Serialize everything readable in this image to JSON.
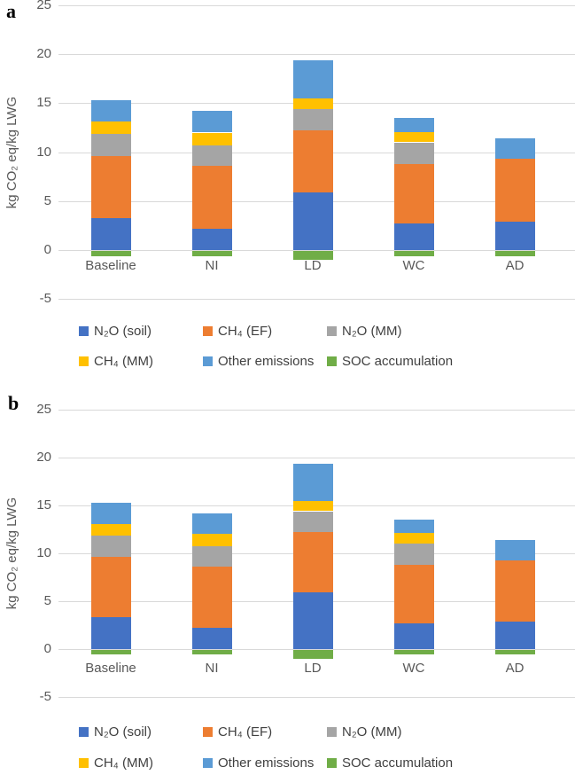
{
  "figure": {
    "background": "#ffffff",
    "gridline_color": "#d9d9d9",
    "axis_text_color": "#595959",
    "legend_text_color": "#404040"
  },
  "chart_data": [
    {
      "type": "bar",
      "stacked": true,
      "panel_label": "a",
      "title": "",
      "xlabel": "",
      "ylabel": "kg CO₂ eq/kg LWG",
      "categories": [
        "Baseline",
        "NI",
        "LD",
        "WC",
        "AD"
      ],
      "series": [
        {
          "name": "N₂O (soil)",
          "color": "#4472C4",
          "values": [
            3.3,
            2.2,
            5.9,
            2.7,
            2.9
          ]
        },
        {
          "name": "CH₄ (EF)",
          "color": "#ED7D31",
          "values": [
            6.3,
            6.4,
            6.3,
            6.1,
            6.4
          ]
        },
        {
          "name": "N₂O (MM)",
          "color": "#A5A5A5",
          "values": [
            2.3,
            2.1,
            2.2,
            2.2,
            0
          ]
        },
        {
          "name": "CH₄ (MM)",
          "color": "#FFC000",
          "values": [
            1.2,
            1.3,
            1.1,
            1.1,
            0
          ]
        },
        {
          "name": "Other emissions",
          "color": "#5B9BD5",
          "values": [
            2.2,
            2.2,
            3.9,
            1.4,
            2.1
          ]
        },
        {
          "name": "SOC accumulation",
          "color": "#70AD47",
          "values": [
            -0.5,
            -0.5,
            -0.9,
            -0.5,
            -0.5
          ]
        }
      ],
      "stack_totals_positive": [
        15.3,
        14.2,
        19.4,
        13.5,
        11.4
      ],
      "yticks": [
        25,
        20,
        15,
        10,
        5,
        0,
        -5
      ],
      "ylim": [
        -5,
        25
      ],
      "grid": true,
      "legend_position": "bottom"
    },
    {
      "type": "bar",
      "stacked": true,
      "panel_label": "b",
      "title": "",
      "xlabel": "",
      "ylabel": "kg CO₂ eq/kg LWG",
      "categories": [
        "Baseline",
        "NI",
        "LD",
        "WC",
        "AD"
      ],
      "series": [
        {
          "name": "N₂O (soil)",
          "color": "#4472C4",
          "values": [
            3.3,
            2.2,
            5.9,
            2.7,
            2.9
          ]
        },
        {
          "name": "CH₄ (EF)",
          "color": "#ED7D31",
          "values": [
            6.3,
            6.4,
            6.3,
            6.1,
            6.4
          ]
        },
        {
          "name": "N₂O (MM)",
          "color": "#A5A5A5",
          "values": [
            2.3,
            2.1,
            2.2,
            2.2,
            0
          ]
        },
        {
          "name": "CH₄ (MM)",
          "color": "#FFC000",
          "values": [
            1.2,
            1.3,
            1.1,
            1.1,
            0
          ]
        },
        {
          "name": "Other emissions",
          "color": "#5B9BD5",
          "values": [
            2.2,
            2.2,
            3.9,
            1.4,
            2.1
          ]
        },
        {
          "name": "SOC accumulation",
          "color": "#70AD47",
          "values": [
            -0.5,
            -0.5,
            -0.9,
            -0.5,
            -0.5
          ]
        }
      ],
      "stack_totals_positive": [
        15.3,
        14.2,
        19.4,
        13.5,
        11.4
      ],
      "yticks": [
        25,
        20,
        15,
        10,
        5,
        0,
        -5
      ],
      "ylim": [
        -5,
        25
      ],
      "grid": true,
      "legend_position": "bottom"
    }
  ]
}
